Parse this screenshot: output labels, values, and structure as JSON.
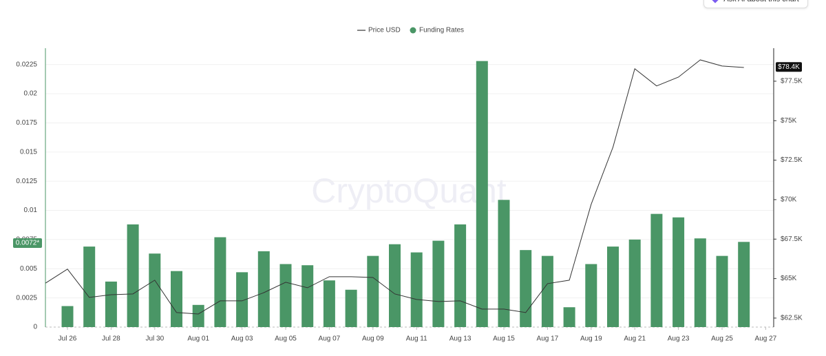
{
  "ask_ai_button": "Ask AI about this chart",
  "watermark": "CryptoQuant",
  "chart_data": {
    "type": "bar",
    "categories": [
      null,
      "Jul 26",
      null,
      "Jul 28",
      null,
      "Jul 30",
      null,
      "Aug 01",
      null,
      "Aug 03",
      null,
      "Aug 05",
      null,
      "Aug 07",
      null,
      "Aug 09",
      null,
      "Aug 11",
      null,
      "Aug 13",
      null,
      "Aug 15",
      null,
      "Aug 17",
      null,
      "Aug 19",
      null,
      "Aug 21",
      null,
      "Aug 23",
      null,
      "Aug 25",
      null,
      "Aug 27"
    ],
    "series": [
      {
        "name": "Funding Rates",
        "type": "bar",
        "color": "#4a9666",
        "axis": "y",
        "values": [
          null,
          0.0018,
          0.0069,
          0.0039,
          0.0088,
          0.0063,
          0.0048,
          0.0019,
          0.0077,
          0.0047,
          0.0065,
          0.0054,
          0.0053,
          0.004,
          0.0032,
          0.0061,
          0.0071,
          0.0064,
          0.0074,
          0.0088,
          0.0228,
          0.0109,
          0.0066,
          0.0061,
          0.0017,
          0.0054,
          0.0069,
          0.0075,
          0.0097,
          0.0094,
          0.0076,
          0.0061,
          0.0073,
          null
        ]
      },
      {
        "name": "Price USD",
        "type": "line",
        "color": "#333333",
        "axis": "y2",
        "values": [
          64720,
          65600,
          63810,
          63980,
          64030,
          64900,
          62850,
          62760,
          63590,
          63590,
          64110,
          64770,
          64420,
          65120,
          65120,
          65070,
          64030,
          63680,
          63550,
          63590,
          63070,
          63070,
          62850,
          64680,
          64900,
          69700,
          73320,
          78290,
          77200,
          77760,
          78850,
          78460,
          78370,
          null
        ]
      }
    ],
    "ylim": [
      0,
      0.0239
    ],
    "yticks": [
      0,
      0.0025,
      0.005,
      0.0075,
      0.01,
      0.0125,
      0.015,
      0.0175,
      0.02,
      0.0225
    ],
    "y2lim": [
      61930,
      79590
    ],
    "y2ticks": [
      {
        "value": 62500,
        "label": "$62.5K"
      },
      {
        "value": 65000,
        "label": "$65K"
      },
      {
        "value": 67500,
        "label": "$67.5K"
      },
      {
        "value": 70000,
        "label": "$70K"
      },
      {
        "value": 72500,
        "label": "$72.5K"
      },
      {
        "value": 75000,
        "label": "$75K"
      },
      {
        "value": 77500,
        "label": "$77.5K"
      }
    ],
    "grid": true,
    "legend": "top",
    "annotations": [
      {
        "text": "0.0072*",
        "value": 0.0072,
        "axis": "y"
      },
      {
        "text": "$78.4K",
        "value": 78400,
        "axis": "y2"
      }
    ]
  }
}
